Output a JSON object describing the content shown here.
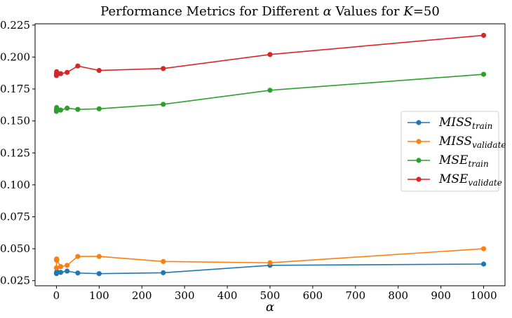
{
  "chart_data": {
    "type": "line",
    "title_prefix": "Performance Metrics for Different ",
    "title_alpha": "α",
    "title_middle": " Values for ",
    "title_k": "K",
    "title_suffix": "=50",
    "xlabel": "α",
    "ylabel": "",
    "xlim": [
      -50,
      1050
    ],
    "ylim": [
      0.021,
      0.226
    ],
    "x_ticks": [
      0,
      100,
      200,
      300,
      400,
      500,
      600,
      700,
      800,
      900,
      1000
    ],
    "x_tick_labels": [
      "0",
      "100",
      "200",
      "300",
      "400",
      "500",
      "600",
      "700",
      "800",
      "900",
      "1000"
    ],
    "y_ticks": [
      0.025,
      0.05,
      0.075,
      0.1,
      0.125,
      0.15,
      0.175,
      0.2,
      0.225
    ],
    "y_tick_labels": [
      "0.025",
      "0.050",
      "0.075",
      "0.100",
      "0.125",
      "0.150",
      "0.175",
      "0.200",
      "0.225"
    ],
    "grid": false,
    "legend_position": "center-right",
    "x": [
      0,
      0.1,
      0.5,
      1,
      10,
      25,
      50,
      100,
      250,
      500,
      1000
    ],
    "series": [
      {
        "name": "MISS",
        "subscript": "train",
        "color": "#1f77b4",
        "values": [
          0.031,
          0.0305,
          0.0315,
          0.032,
          0.0315,
          0.0325,
          0.031,
          0.0305,
          0.0312,
          0.037,
          0.038
        ]
      },
      {
        "name": "MISS",
        "subscript": "validate",
        "color": "#ff7f0e",
        "values": [
          0.035,
          0.041,
          0.042,
          0.041,
          0.036,
          0.037,
          0.044,
          0.044,
          0.04,
          0.039,
          0.05
        ]
      },
      {
        "name": "MSE",
        "subscript": "train",
        "color": "#2ca02c",
        "values": [
          0.1575,
          0.159,
          0.1605,
          0.159,
          0.1585,
          0.16,
          0.159,
          0.1595,
          0.163,
          0.174,
          0.1865
        ]
      },
      {
        "name": "MSE",
        "subscript": "validate",
        "color": "#d62728",
        "values": [
          0.1855,
          0.187,
          0.1885,
          0.186,
          0.187,
          0.188,
          0.193,
          0.1895,
          0.191,
          0.202,
          0.217
        ]
      }
    ]
  }
}
